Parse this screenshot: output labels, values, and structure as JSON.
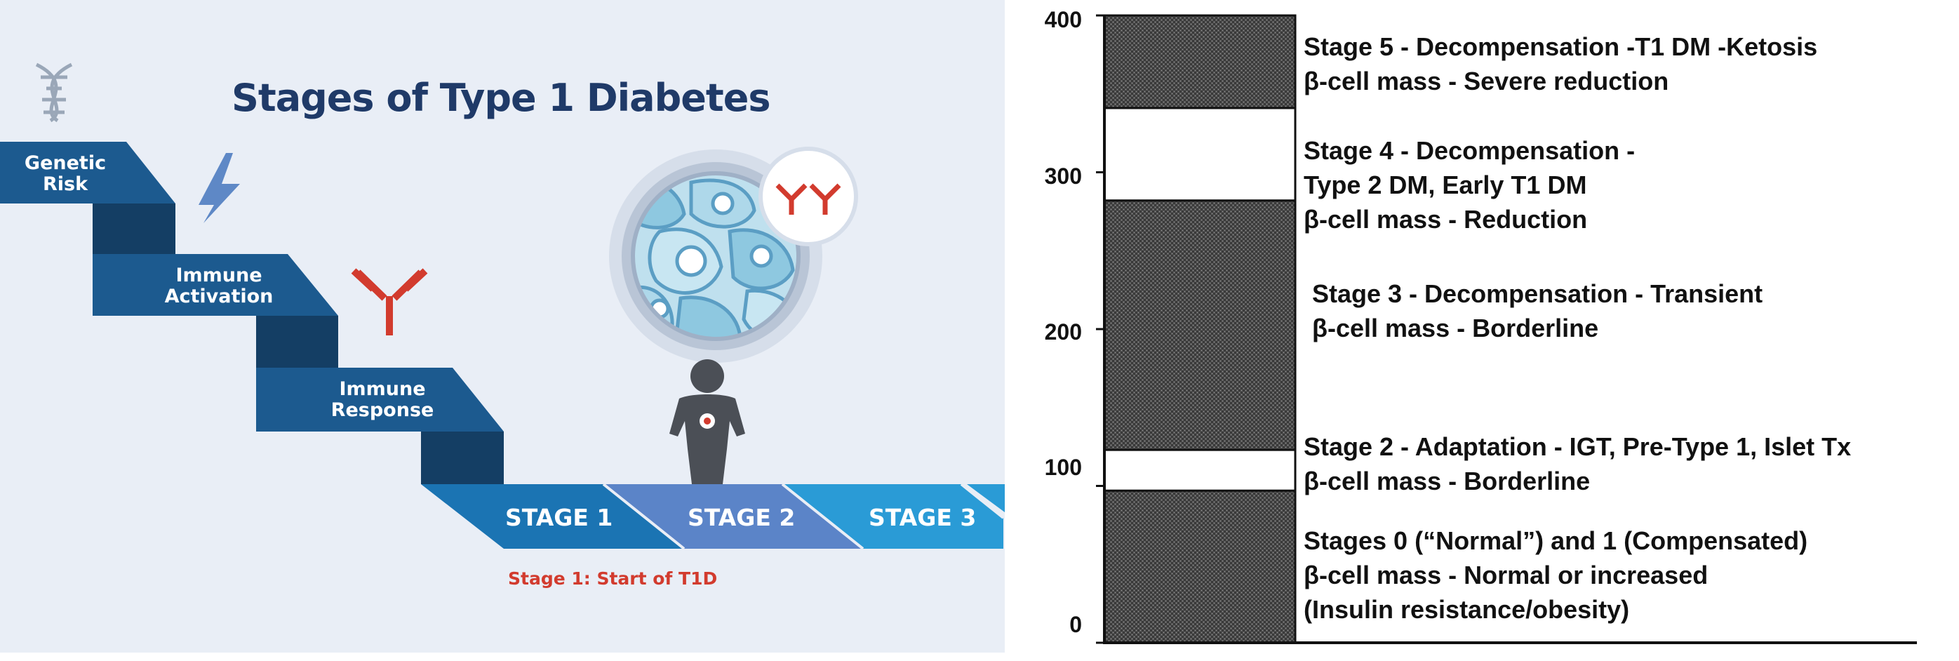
{
  "left": {
    "title": "Stages of Type 1 Diabetes",
    "steps": [
      {
        "line1": "Genetic",
        "line2": "Risk"
      },
      {
        "line1": "Immune",
        "line2": "Activation"
      },
      {
        "line1": "Immune",
        "line2": "Response"
      }
    ],
    "stages": [
      "STAGE 1",
      "STAGE 2",
      "STAGE 3"
    ],
    "caption": "Stage 1: Start of T1D",
    "icons": [
      "dna-icon",
      "lightning-icon",
      "antibody-icon",
      "cell-cluster-icon",
      "antibody-pair-icon",
      "person-icon"
    ],
    "colors": {
      "background": "#e9eef6",
      "title": "#1f3a68",
      "step_top": "#1c5a8f",
      "step_side": "#143e64",
      "stage1": "#1b74b3",
      "stage2": "#5b84c8",
      "stage3": "#2a9bd6",
      "antibody": "#d23b2e",
      "caption": "#d23b2e"
    }
  },
  "right": {
    "axis_ticks": [
      "400",
      "300",
      "200",
      "100",
      "0"
    ],
    "stages": [
      {
        "lines": [
          "Stage 5 - Decompensation -T1 DM -Ketosis",
          "β-cell mass - Severe reduction"
        ]
      },
      {
        "lines": [
          "Stage 4 - Decompensation -",
          "Type 2 DM, Early T1 DM",
          "β-cell mass - Reduction"
        ]
      },
      {
        "lines": [
          "Stage 3 - Decompensation - Transient",
          "β-cell mass - Borderline"
        ]
      },
      {
        "lines": [
          "Stage 2 - Adaptation - IGT, Pre-Type 1, Islet Tx",
          "β-cell mass - Borderline"
        ]
      },
      {
        "lines": [
          "Stages 0 (“Normal”) and 1 (Compensated)",
          "β-cell mass  - Normal or increased",
          "(Insulin resistance/obesity)"
        ]
      }
    ],
    "bands": [
      {
        "from": 0,
        "to": 97,
        "fill": "dark"
      },
      {
        "from": 97,
        "to": 123,
        "fill": "white"
      },
      {
        "from": 123,
        "to": 282,
        "fill": "dark"
      },
      {
        "from": 282,
        "to": 341,
        "fill": "white"
      },
      {
        "from": 341,
        "to": 400,
        "fill": "dark"
      }
    ],
    "y_range": [
      0,
      400
    ]
  }
}
